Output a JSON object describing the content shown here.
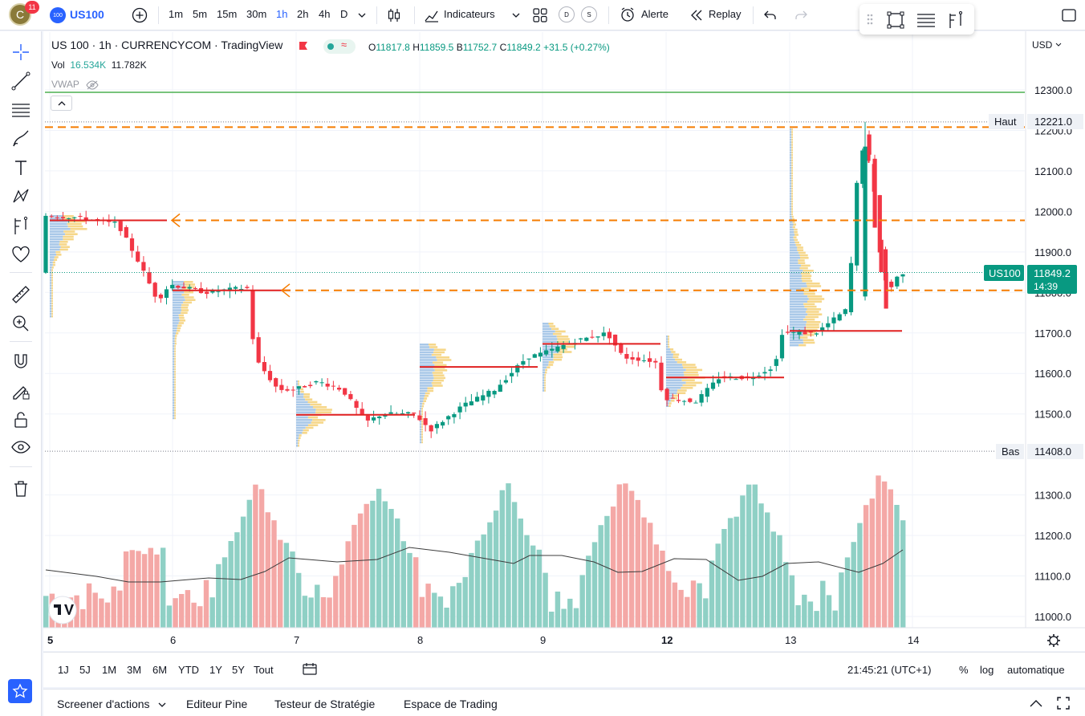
{
  "topbar": {
    "avatar_letter": "C",
    "notifications": "11",
    "symbol_logo": "100",
    "symbol": "US100",
    "timeframes": [
      "1m",
      "5m",
      "15m",
      "30m",
      "1h",
      "2h",
      "4h",
      "D"
    ],
    "active_timeframe": "1h",
    "indicators_label": "Indicateurs",
    "chip_d": "D",
    "chip_s": "S",
    "alert_label": "Alerte",
    "replay_label": "Replay"
  },
  "legend": {
    "title": "US 100 · 1h · CURRENCYCOM · TradingView",
    "o_label": "O",
    "o_value": "11817.8",
    "h_label": "H",
    "h_value": "11859.5",
    "b_label": "B",
    "b_value": "11752.7",
    "c_label": "C",
    "c_value": "11849.2",
    "change": "+31.5 (+0.27%)",
    "vol_label": "Vol",
    "vol_value": "16.534K",
    "vol_ma": "11.782K",
    "vwap_label": "VWAP"
  },
  "price_axis": {
    "currency": "USD",
    "ticks": [
      "12300.0",
      "12200.0",
      "12100.0",
      "12000.0",
      "11900.0",
      "11800.0",
      "11700.0",
      "11600.0",
      "11500.0",
      "11300.0",
      "11200.0",
      "11100.0",
      "11000.0"
    ],
    "high_label": "Haut",
    "high_value": "12221.0",
    "low_label": "Bas",
    "low_value": "11408.0",
    "symbol_tag": "US100",
    "last_price": "11849.2",
    "countdown": "14:39"
  },
  "time_axis": {
    "ticks": [
      "5",
      "6",
      "7",
      "8",
      "9",
      "12",
      "13",
      "14"
    ]
  },
  "bottom": {
    "ranges": [
      "1J",
      "5J",
      "1M",
      "3M",
      "6M",
      "YTD",
      "1Y",
      "5Y",
      "Tout"
    ],
    "clock": "21:45:21 (UTC+1)",
    "percent": "%",
    "log": "log",
    "auto": "automatique"
  },
  "panels": {
    "tabs": [
      "Screener d'actions",
      "Editeur Pine",
      "Testeur de Stratégie",
      "Espace de Trading"
    ]
  },
  "colors": {
    "up": "#26a69a",
    "down": "#ef5350",
    "accent": "#2962ff",
    "level": "#f57c00",
    "poc": "#e02020",
    "resistance": "#4caf50"
  }
}
